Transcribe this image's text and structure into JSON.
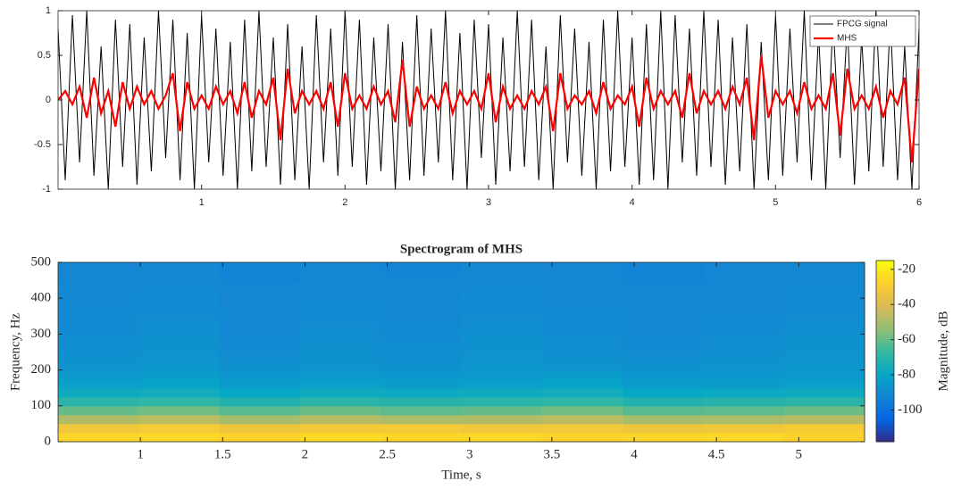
{
  "chart_data": [
    {
      "type": "line",
      "x": [
        0,
        0.05,
        0.1,
        0.15,
        0.2,
        0.25,
        0.3,
        0.35,
        0.4,
        0.45,
        0.5,
        0.55,
        0.6,
        0.65,
        0.7,
        0.75,
        0.8,
        0.85,
        0.9,
        0.95,
        1,
        1.05,
        1.1,
        1.15,
        1.2,
        1.25,
        1.3,
        1.35,
        1.4,
        1.45,
        1.5,
        1.55,
        1.6,
        1.65,
        1.7,
        1.75,
        1.8,
        1.85,
        1.9,
        1.95,
        2,
        2.05,
        2.1,
        2.15,
        2.2,
        2.25,
        2.3,
        2.35,
        2.4,
        2.45,
        2.5,
        2.55,
        2.6,
        2.65,
        2.7,
        2.75,
        2.8,
        2.85,
        2.9,
        2.95,
        3,
        3.05,
        3.1,
        3.15,
        3.2,
        3.25,
        3.3,
        3.35,
        3.4,
        3.45,
        3.5,
        3.55,
        3.6,
        3.65,
        3.7,
        3.75,
        3.8,
        3.85,
        3.9,
        3.95,
        4,
        4.05,
        4.1,
        4.15,
        4.2,
        4.25,
        4.3,
        4.35,
        4.4,
        4.45,
        4.5,
        4.55,
        4.6,
        4.65,
        4.7,
        4.75,
        4.8,
        4.85,
        4.9,
        4.95,
        5,
        5.05,
        5.1,
        5.15,
        5.2,
        5.25,
        5.3,
        5.35,
        5.4,
        5.45,
        5.5,
        5.55,
        5.6,
        5.65,
        5.7,
        5.75,
        5.8,
        5.85,
        5.9,
        5.95,
        6
      ],
      "series": [
        {
          "name": "FPCG signal",
          "color": "#000000",
          "width": 1,
          "values": [
            0.8,
            -0.9,
            0.95,
            -0.7,
            1,
            -0.85,
            0.6,
            -1,
            0.9,
            -0.75,
            0.85,
            -0.95,
            0.7,
            -0.8,
            1,
            -0.65,
            0.9,
            -0.9,
            0.75,
            -1,
            0.95,
            -0.7,
            0.8,
            -0.85,
            0.65,
            -1,
            0.9,
            -0.8,
            1,
            -0.75,
            0.7,
            -0.95,
            0.85,
            -0.9,
            0.6,
            -1,
            0.95,
            -0.7,
            0.8,
            -0.85,
            1,
            -0.75,
            0.9,
            -0.95,
            0.7,
            -0.8,
            0.85,
            -1,
            0.65,
            -0.9,
            0.95,
            -0.85,
            0.8,
            -0.7,
            1,
            -0.9,
            0.75,
            -1,
            0.9,
            -0.65,
            0.85,
            -0.95,
            0.7,
            -0.8,
            1,
            -0.75,
            0.9,
            -0.9,
            0.6,
            -1,
            0.95,
            -0.7,
            0.8,
            -0.85,
            0.65,
            -1,
            0.9,
            -0.8,
            1,
            -0.75,
            0.7,
            -0.95,
            0.85,
            -0.9,
            1,
            -1,
            0.95,
            -0.7,
            0.8,
            -0.85,
            1,
            -0.75,
            0.9,
            -0.95,
            0.7,
            -0.8,
            0.85,
            -1,
            0.65,
            -0.9,
            0.95,
            -0.85,
            0.8,
            -0.7,
            1,
            -0.9,
            0.75,
            -1,
            0.9,
            -0.65,
            0.85,
            -0.95,
            0.7,
            -0.8,
            1,
            -0.75,
            0.9,
            -0.9,
            0.6,
            -1,
            0.8
          ]
        },
        {
          "name": "MHS",
          "color": "#ff0000",
          "width": 2.2,
          "values": [
            0,
            0.1,
            -0.05,
            0.15,
            -0.2,
            0.25,
            -0.15,
            0.1,
            -0.3,
            0.2,
            -0.1,
            0.15,
            -0.05,
            0.1,
            -0.1,
            0.05,
            0.3,
            -0.35,
            0.2,
            -0.1,
            0.05,
            -0.1,
            0.15,
            -0.05,
            0.1,
            -0.15,
            0.2,
            -0.2,
            0.1,
            -0.05,
            0.25,
            -0.45,
            0.35,
            -0.15,
            0.1,
            -0.05,
            0.1,
            -0.1,
            0.2,
            -0.3,
            0.3,
            -0.1,
            0.05,
            -0.1,
            0.15,
            -0.05,
            0.1,
            -0.25,
            0.45,
            -0.3,
            0.15,
            -0.1,
            0.05,
            -0.1,
            0.2,
            -0.15,
            0.1,
            -0.05,
            0.1,
            -0.1,
            0.3,
            -0.25,
            0.15,
            -0.1,
            0.05,
            -0.1,
            0.1,
            -0.05,
            0.15,
            -0.35,
            0.3,
            -0.1,
            0.05,
            -0.05,
            0.1,
            -0.15,
            0.2,
            -0.1,
            0.05,
            -0.05,
            0.15,
            -0.3,
            0.25,
            -0.1,
            0.1,
            -0.05,
            0.1,
            -0.2,
            0.3,
            -0.15,
            0.1,
            -0.05,
            0.1,
            -0.1,
            0.15,
            -0.05,
            0.25,
            -0.45,
            0.5,
            -0.2,
            0.1,
            -0.05,
            0.1,
            -0.15,
            0.2,
            -0.1,
            0.05,
            -0.1,
            0.3,
            -0.4,
            0.35,
            -0.1,
            0.05,
            -0.1,
            0.15,
            -0.2,
            0.1,
            -0.05,
            0.25,
            -0.7,
            0.35
          ]
        }
      ],
      "xlim": [
        0,
        6
      ],
      "xticks": [
        1,
        2,
        3,
        4,
        5,
        6
      ],
      "ylim": [
        -1,
        1
      ],
      "yticks": [
        -1,
        -0.5,
        0,
        0.5,
        1
      ],
      "legend": "upper right"
    },
    {
      "type": "heatmap",
      "title": "Spectrogram of MHS",
      "xlabel": "Time, s",
      "ylabel": "Frequency, Hz",
      "colorbar_label": "Magnitude, dB",
      "colormap": "parula",
      "x": [
        0.745,
        1.235,
        1.725,
        2.215,
        2.705,
        3.195,
        3.685,
        4.175,
        4.665,
        5.155
      ],
      "y": [
        12.5,
        37.5,
        62.5,
        87.5,
        112.5,
        137.5,
        162.5,
        187.5,
        212.5,
        237.5,
        262.5,
        287.5,
        312.5,
        337.5,
        362.5,
        387.5,
        412.5,
        437.5,
        462.5,
        487.5
      ],
      "z": [
        [
          -26,
          -25,
          -27,
          -24,
          -26,
          -25,
          -27,
          -26,
          -25,
          -27
        ],
        [
          -32,
          -30,
          -33,
          -31,
          -30,
          -32,
          -31,
          -33,
          -32,
          -30
        ],
        [
          -48,
          -46,
          -50,
          -47,
          -49,
          -48,
          -46,
          -50,
          -49,
          -47
        ],
        [
          -60,
          -58,
          -62,
          -59,
          -61,
          -60,
          -58,
          -62,
          -61,
          -59
        ],
        [
          -70,
          -69,
          -72,
          -70,
          -71,
          -70,
          -69,
          -72,
          -71,
          -70
        ],
        [
          -77,
          -76,
          -79,
          -77,
          -78,
          -77,
          -76,
          -79,
          -78,
          -77
        ],
        [
          -82,
          -81,
          -84,
          -82,
          -83,
          -82,
          -81,
          -84,
          -83,
          -82
        ],
        [
          -85,
          -84,
          -86,
          -85,
          -86,
          -85,
          -84,
          -86,
          -86,
          -85
        ],
        [
          -87,
          -86,
          -88,
          -87,
          -88,
          -86,
          -87,
          -88,
          -87,
          -86
        ],
        [
          -88,
          -87,
          -89,
          -88,
          -89,
          -87,
          -88,
          -89,
          -88,
          -87
        ],
        [
          -89,
          -88,
          -90,
          -88,
          -89,
          -88,
          -89,
          -90,
          -89,
          -88
        ],
        [
          -89,
          -88,
          -90,
          -89,
          -90,
          -88,
          -89,
          -90,
          -89,
          -88
        ],
        [
          -90,
          -89,
          -91,
          -89,
          -90,
          -89,
          -90,
          -91,
          -90,
          -89
        ],
        [
          -90,
          -89,
          -91,
          -90,
          -91,
          -89,
          -90,
          -91,
          -90,
          -89
        ],
        [
          -90,
          -90,
          -91,
          -90,
          -91,
          -90,
          -90,
          -91,
          -91,
          -90
        ],
        [
          -91,
          -90,
          -92,
          -90,
          -91,
          -90,
          -91,
          -92,
          -91,
          -90
        ],
        [
          -91,
          -90,
          -92,
          -91,
          -92,
          -90,
          -91,
          -92,
          -91,
          -90
        ],
        [
          -91,
          -91,
          -92,
          -91,
          -92,
          -91,
          -91,
          -92,
          -92,
          -91
        ],
        [
          -92,
          -91,
          -93,
          -91,
          -92,
          -91,
          -92,
          -93,
          -92,
          -91
        ],
        [
          -92,
          -91,
          -93,
          -92,
          -93,
          -91,
          -92,
          -93,
          -92,
          -91
        ]
      ],
      "xlim": [
        0.5,
        5.4
      ],
      "xticks": [
        1,
        1.5,
        2,
        2.5,
        3,
        3.5,
        4,
        4.5,
        5
      ],
      "ylim": [
        0,
        500
      ],
      "yticks": [
        0,
        100,
        200,
        300,
        400,
        500
      ],
      "clim": [
        -118,
        -15
      ],
      "cticks": [
        -100,
        -80,
        -60,
        -40,
        -20
      ]
    }
  ]
}
